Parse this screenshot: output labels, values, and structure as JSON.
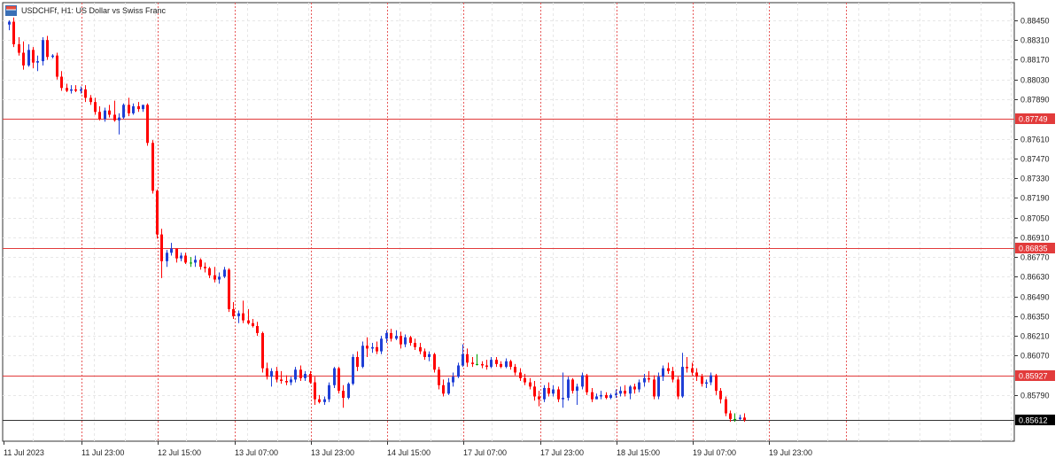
{
  "header": {
    "symbol_icon": "chart-window-icon",
    "title": "USDCHFf, H1:  US Dollar vs Swiss Franc"
  },
  "colors": {
    "bull": "#1f3fd6",
    "bear": "#ff0000",
    "doji": "#00a000",
    "hline": "#e23b3b",
    "grid": "#e7e7e7",
    "vgrid": "#e85a5a",
    "axis": "#333333",
    "price_bg": "#000000"
  },
  "chart_data": {
    "type": "candlestick",
    "grid": true,
    "ylim": [
      0.855,
      0.885
    ],
    "y_ticks": [
      "0.88450",
      "0.88310",
      "0.88170",
      "0.88030",
      "0.87890",
      "0.87610",
      "0.87470",
      "0.87330",
      "0.87190",
      "0.87050",
      "0.86910",
      "0.86770",
      "0.86630",
      "0.86490",
      "0.86350",
      "0.86210",
      "0.86070",
      "0.85790"
    ],
    "x_labels": [
      "11 Jul 2023",
      "11 Jul 23:00",
      "12 Jul 15:00",
      "13 Jul 07:00",
      "13 Jul 23:00",
      "14 Jul 15:00",
      "17 Jul 07:00",
      "17 Jul 23:00",
      "18 Jul 15:00",
      "19 Jul 07:00",
      "19 Jul 23:00"
    ],
    "x_label_index": [
      0,
      16,
      32,
      48,
      64,
      80,
      96,
      112,
      128,
      144,
      160
    ],
    "horizontal_levels": [
      {
        "value": 0.87749,
        "label": "0.87749"
      },
      {
        "value": 0.86835,
        "label": "0.86835"
      },
      {
        "value": 0.85927,
        "label": "0.85927"
      }
    ],
    "current_price": {
      "value": 0.85612,
      "label": "0.85612"
    },
    "candles": [
      [
        0.8842,
        0.8845,
        0.8838,
        0.8844
      ],
      [
        0.8844,
        0.8847,
        0.8826,
        0.8828
      ],
      [
        0.8828,
        0.8833,
        0.882,
        0.8822
      ],
      [
        0.8822,
        0.883,
        0.881,
        0.8813
      ],
      [
        0.8813,
        0.8828,
        0.8812,
        0.8824
      ],
      [
        0.8824,
        0.8826,
        0.8811,
        0.8815
      ],
      [
        0.8815,
        0.882,
        0.8809,
        0.8816
      ],
      [
        0.8816,
        0.8833,
        0.8813,
        0.8831
      ],
      [
        0.8831,
        0.8834,
        0.8817,
        0.8819
      ],
      [
        0.8819,
        0.8821,
        0.8818,
        0.882
      ],
      [
        0.882,
        0.8822,
        0.8803,
        0.8805
      ],
      [
        0.8805,
        0.8809,
        0.8795,
        0.8797
      ],
      [
        0.8797,
        0.88,
        0.8794,
        0.8795
      ],
      [
        0.8795,
        0.8799,
        0.8793,
        0.8796
      ],
      [
        0.8796,
        0.8799,
        0.8794,
        0.8795
      ],
      [
        0.8795,
        0.8798,
        0.8793,
        0.8796
      ],
      [
        0.8796,
        0.8799,
        0.8787,
        0.879
      ],
      [
        0.879,
        0.8792,
        0.8785,
        0.8787
      ],
      [
        0.8787,
        0.879,
        0.8778,
        0.878
      ],
      [
        0.878,
        0.8784,
        0.8774,
        0.8775
      ],
      [
        0.8775,
        0.8783,
        0.8773,
        0.8781
      ],
      [
        0.8781,
        0.8785,
        0.8776,
        0.8778
      ],
      [
        0.8778,
        0.8788,
        0.8773,
        0.8774
      ],
      [
        0.8774,
        0.8779,
        0.8764,
        0.8776
      ],
      [
        0.8776,
        0.8786,
        0.8775,
        0.8785
      ],
      [
        0.8785,
        0.879,
        0.8777,
        0.8779
      ],
      [
        0.8779,
        0.8786,
        0.8778,
        0.8784
      ],
      [
        0.8784,
        0.8787,
        0.878,
        0.8782
      ],
      [
        0.8782,
        0.8785,
        0.878,
        0.8785
      ],
      [
        0.8785,
        0.8786,
        0.8756,
        0.8758
      ],
      [
        0.8758,
        0.876,
        0.8722,
        0.8724
      ],
      [
        0.8724,
        0.8725,
        0.869,
        0.8693
      ],
      [
        0.8693,
        0.8697,
        0.8662,
        0.8674
      ],
      [
        0.8674,
        0.8682,
        0.867,
        0.868
      ],
      [
        0.868,
        0.8687,
        0.8678,
        0.8683
      ],
      [
        0.8683,
        0.8683,
        0.8673,
        0.8676
      ],
      [
        0.8676,
        0.868,
        0.8674,
        0.8678
      ],
      [
        0.8678,
        0.868,
        0.8672,
        0.8673
      ],
      [
        0.8673,
        0.8677,
        0.867,
        0.8673
      ],
      [
        0.8673,
        0.8678,
        0.867,
        0.8675
      ],
      [
        0.8675,
        0.8676,
        0.8668,
        0.867
      ],
      [
        0.867,
        0.8673,
        0.8666,
        0.8669
      ],
      [
        0.8669,
        0.867,
        0.8662,
        0.8664
      ],
      [
        0.8664,
        0.867,
        0.8659,
        0.8661
      ],
      [
        0.8661,
        0.8666,
        0.8658,
        0.8663
      ],
      [
        0.8663,
        0.867,
        0.8662,
        0.8668
      ],
      [
        0.8668,
        0.8669,
        0.8638,
        0.864
      ],
      [
        0.864,
        0.8645,
        0.8633,
        0.8635
      ],
      [
        0.8635,
        0.8639,
        0.863,
        0.8637
      ],
      [
        0.8637,
        0.8646,
        0.863,
        0.8632
      ],
      [
        0.8632,
        0.864,
        0.8629,
        0.863
      ],
      [
        0.863,
        0.8633,
        0.8627,
        0.8628
      ],
      [
        0.8628,
        0.8631,
        0.8621,
        0.8623
      ],
      [
        0.8623,
        0.8624,
        0.8595,
        0.8598
      ],
      [
        0.8598,
        0.8602,
        0.859,
        0.8592
      ],
      [
        0.8592,
        0.8598,
        0.8585,
        0.8596
      ],
      [
        0.8596,
        0.8599,
        0.8588,
        0.859
      ],
      [
        0.859,
        0.8596,
        0.8587,
        0.8589
      ],
      [
        0.8589,
        0.8593,
        0.8586,
        0.8588
      ],
      [
        0.8588,
        0.8592,
        0.8586,
        0.859
      ],
      [
        0.859,
        0.8599,
        0.8588,
        0.8597
      ],
      [
        0.8597,
        0.86,
        0.8589,
        0.8591
      ],
      [
        0.8591,
        0.8596,
        0.8589,
        0.8594
      ],
      [
        0.8594,
        0.8596,
        0.8587,
        0.8588
      ],
      [
        0.8588,
        0.8592,
        0.8572,
        0.8576
      ],
      [
        0.8576,
        0.8579,
        0.8573,
        0.8574
      ],
      [
        0.8574,
        0.8578,
        0.8572,
        0.8576
      ],
      [
        0.8576,
        0.8588,
        0.8574,
        0.8586
      ],
      [
        0.8586,
        0.8599,
        0.8584,
        0.8598
      ],
      [
        0.8598,
        0.8599,
        0.858,
        0.8582
      ],
      [
        0.8582,
        0.8586,
        0.857,
        0.8577
      ],
      [
        0.8577,
        0.8588,
        0.8576,
        0.8587
      ],
      [
        0.8587,
        0.8608,
        0.8586,
        0.8606
      ],
      [
        0.8606,
        0.861,
        0.8596,
        0.8599
      ],
      [
        0.8599,
        0.8617,
        0.8598,
        0.8614
      ],
      [
        0.8614,
        0.862,
        0.8606,
        0.8612
      ],
      [
        0.8612,
        0.8616,
        0.8609,
        0.8613
      ],
      [
        0.8613,
        0.8617,
        0.8608,
        0.861
      ],
      [
        0.861,
        0.8621,
        0.8608,
        0.8619
      ],
      [
        0.8619,
        0.8625,
        0.8616,
        0.8623
      ],
      [
        0.8623,
        0.8626,
        0.8617,
        0.8619
      ],
      [
        0.8619,
        0.8625,
        0.8618,
        0.8621
      ],
      [
        0.8621,
        0.8624,
        0.8612,
        0.8615
      ],
      [
        0.8615,
        0.8622,
        0.8613,
        0.862
      ],
      [
        0.862,
        0.8621,
        0.8614,
        0.8616
      ],
      [
        0.8616,
        0.8619,
        0.8611,
        0.8613
      ],
      [
        0.8613,
        0.8616,
        0.8608,
        0.861
      ],
      [
        0.861,
        0.8612,
        0.8604,
        0.8606
      ],
      [
        0.8606,
        0.861,
        0.8603,
        0.8608
      ],
      [
        0.8608,
        0.8609,
        0.8595,
        0.8597
      ],
      [
        0.8597,
        0.8599,
        0.8583,
        0.8586
      ],
      [
        0.8586,
        0.859,
        0.8578,
        0.858
      ],
      [
        0.858,
        0.8591,
        0.8579,
        0.8588
      ],
      [
        0.8588,
        0.8595,
        0.8585,
        0.8592
      ],
      [
        0.8592,
        0.8602,
        0.8591,
        0.86
      ],
      [
        0.86,
        0.8615,
        0.8599,
        0.8608
      ],
      [
        0.8608,
        0.8612,
        0.8599,
        0.8602
      ],
      [
        0.8602,
        0.8606,
        0.8599,
        0.8601
      ],
      [
        0.8601,
        0.8608,
        0.86,
        0.8601
      ],
      [
        0.8601,
        0.8603,
        0.8598,
        0.86
      ],
      [
        0.86,
        0.8604,
        0.8597,
        0.8599
      ],
      [
        0.8599,
        0.8606,
        0.8598,
        0.8604
      ],
      [
        0.8604,
        0.8606,
        0.8599,
        0.8601
      ],
      [
        0.8601,
        0.8603,
        0.8598,
        0.8599
      ],
      [
        0.8599,
        0.8605,
        0.8598,
        0.8603
      ],
      [
        0.8603,
        0.8604,
        0.8597,
        0.8599
      ],
      [
        0.8599,
        0.8601,
        0.8593,
        0.8595
      ],
      [
        0.8595,
        0.8598,
        0.8589,
        0.8591
      ],
      [
        0.8591,
        0.8594,
        0.8586,
        0.8588
      ],
      [
        0.8588,
        0.8591,
        0.8583,
        0.8585
      ],
      [
        0.8585,
        0.8589,
        0.8575,
        0.8578
      ],
      [
        0.8578,
        0.8582,
        0.8571,
        0.8576
      ],
      [
        0.8576,
        0.8586,
        0.8574,
        0.8584
      ],
      [
        0.8584,
        0.8588,
        0.8578,
        0.858
      ],
      [
        0.858,
        0.8586,
        0.8578,
        0.8583
      ],
      [
        0.8583,
        0.8585,
        0.8574,
        0.8576
      ],
      [
        0.8576,
        0.8595,
        0.857,
        0.8577
      ],
      [
        0.8577,
        0.8592,
        0.8575,
        0.859
      ],
      [
        0.859,
        0.8591,
        0.858,
        0.8582
      ],
      [
        0.8582,
        0.8587,
        0.8572,
        0.8585
      ],
      [
        0.8585,
        0.8595,
        0.8583,
        0.8593
      ],
      [
        0.8593,
        0.8594,
        0.8579,
        0.8581
      ],
      [
        0.8581,
        0.8584,
        0.8574,
        0.8576
      ],
      [
        0.8576,
        0.858,
        0.8576,
        0.8578
      ],
      [
        0.8578,
        0.8582,
        0.8576,
        0.8579
      ],
      [
        0.8579,
        0.8581,
        0.8576,
        0.8577
      ],
      [
        0.8577,
        0.858,
        0.8576,
        0.8579
      ],
      [
        0.8579,
        0.8583,
        0.8577,
        0.858
      ],
      [
        0.858,
        0.8585,
        0.8578,
        0.8582
      ],
      [
        0.8582,
        0.8586,
        0.8578,
        0.858
      ],
      [
        0.858,
        0.8586,
        0.8576,
        0.8585
      ],
      [
        0.8585,
        0.8587,
        0.858,
        0.8583
      ],
      [
        0.8583,
        0.859,
        0.8581,
        0.8588
      ],
      [
        0.8588,
        0.8594,
        0.8585,
        0.8591
      ],
      [
        0.8591,
        0.8596,
        0.8588,
        0.859
      ],
      [
        0.859,
        0.8593,
        0.8576,
        0.8578
      ],
      [
        0.8578,
        0.8595,
        0.8576,
        0.8592
      ],
      [
        0.8592,
        0.86,
        0.8589,
        0.8598
      ],
      [
        0.8598,
        0.8602,
        0.8594,
        0.8596
      ],
      [
        0.8596,
        0.8599,
        0.8588,
        0.859
      ],
      [
        0.859,
        0.8592,
        0.8576,
        0.8578
      ],
      [
        0.8578,
        0.8609,
        0.8577,
        0.8599
      ],
      [
        0.8599,
        0.8606,
        0.8595,
        0.8598
      ],
      [
        0.8598,
        0.8602,
        0.8593,
        0.8595
      ],
      [
        0.8595,
        0.8598,
        0.8589,
        0.8592
      ],
      [
        0.8592,
        0.8594,
        0.8585,
        0.8587
      ],
      [
        0.8587,
        0.859,
        0.8584,
        0.8588
      ],
      [
        0.8588,
        0.8595,
        0.8586,
        0.8593
      ],
      [
        0.8593,
        0.8594,
        0.8579,
        0.8582
      ],
      [
        0.8582,
        0.8584,
        0.8573,
        0.8576
      ],
      [
        0.8576,
        0.8578,
        0.8564,
        0.8566
      ],
      [
        0.8566,
        0.8568,
        0.856,
        0.8562
      ],
      [
        0.8562,
        0.8566,
        0.856,
        0.8562
      ],
      [
        0.8562,
        0.8565,
        0.8561,
        0.8563
      ],
      [
        0.8563,
        0.8566,
        0.856,
        0.85612
      ]
    ]
  }
}
